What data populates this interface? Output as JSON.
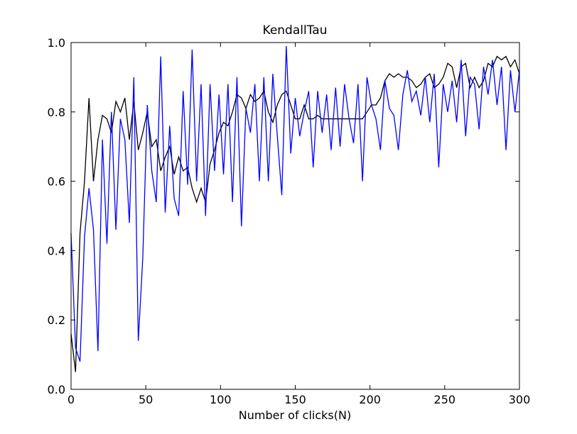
{
  "chart_data": {
    "type": "line",
    "title": "KendallTau",
    "xlabel": "Number of clicks(N)",
    "x": [
      0,
      3,
      6,
      9,
      12,
      15,
      18,
      21,
      24,
      27,
      30,
      33,
      36,
      39,
      42,
      45,
      48,
      51,
      54,
      57,
      60,
      63,
      66,
      69,
      72,
      75,
      78,
      81,
      84,
      87,
      90,
      93,
      96,
      99,
      102,
      105,
      108,
      111,
      114,
      117,
      120,
      123,
      126,
      129,
      132,
      135,
      138,
      141,
      144,
      147,
      150,
      153,
      156,
      159,
      162,
      165,
      168,
      171,
      174,
      177,
      180,
      183,
      186,
      189,
      192,
      195,
      198,
      201,
      204,
      207,
      210,
      213,
      216,
      219,
      222,
      225,
      228,
      231,
      234,
      237,
      240,
      243,
      246,
      249,
      252,
      255,
      258,
      261,
      264,
      267,
      270,
      273,
      276,
      279,
      282,
      285,
      288,
      291,
      294,
      297,
      300
    ],
    "series": [
      {
        "color": "#000000",
        "values": [
          0.16,
          0.05,
          0.45,
          0.6,
          0.84,
          0.6,
          0.72,
          0.79,
          0.78,
          0.74,
          0.83,
          0.8,
          0.84,
          0.72,
          0.83,
          0.69,
          0.74,
          0.8,
          0.7,
          0.72,
          0.63,
          0.67,
          0.7,
          0.62,
          0.67,
          0.63,
          0.64,
          0.58,
          0.54,
          0.58,
          0.54,
          0.65,
          0.69,
          0.74,
          0.77,
          0.76,
          0.8,
          0.85,
          0.84,
          0.81,
          0.85,
          0.83,
          0.84,
          0.86,
          0.8,
          0.77,
          0.82,
          0.85,
          0.86,
          0.82,
          0.78,
          0.78,
          0.82,
          0.78,
          0.78,
          0.79,
          0.78,
          0.78,
          0.78,
          0.78,
          0.78,
          0.78,
          0.78,
          0.78,
          0.78,
          0.78,
          0.8,
          0.82,
          0.82,
          0.84,
          0.89,
          0.91,
          0.9,
          0.91,
          0.9,
          0.9,
          0.89,
          0.87,
          0.88,
          0.9,
          0.91,
          0.87,
          0.88,
          0.9,
          0.94,
          0.93,
          0.87,
          0.93,
          0.94,
          0.87,
          0.9,
          0.87,
          0.89,
          0.94,
          0.93,
          0.96,
          0.95,
          0.96,
          0.93,
          0.95,
          0.91
        ]
      },
      {
        "color": "#0000ff",
        "values": [
          0.45,
          0.12,
          0.08,
          0.44,
          0.58,
          0.46,
          0.11,
          0.72,
          0.42,
          0.8,
          0.46,
          0.78,
          0.72,
          0.48,
          0.9,
          0.14,
          0.38,
          0.82,
          0.63,
          0.54,
          0.96,
          0.51,
          0.76,
          0.55,
          0.5,
          0.86,
          0.59,
          0.98,
          0.6,
          0.88,
          0.5,
          0.88,
          0.63,
          0.85,
          0.62,
          0.88,
          0.54,
          0.9,
          0.47,
          0.81,
          0.74,
          0.88,
          0.6,
          0.9,
          0.6,
          0.91,
          0.73,
          0.56,
          0.99,
          0.68,
          0.84,
          0.73,
          0.8,
          0.86,
          0.64,
          0.86,
          0.74,
          0.85,
          0.69,
          0.87,
          0.7,
          0.88,
          0.78,
          0.71,
          0.88,
          0.6,
          0.9,
          0.82,
          0.78,
          0.69,
          0.89,
          0.81,
          0.79,
          0.69,
          0.85,
          0.92,
          0.83,
          0.86,
          0.79,
          0.9,
          0.77,
          0.91,
          0.64,
          0.88,
          0.8,
          0.89,
          0.77,
          0.95,
          0.73,
          0.9,
          0.88,
          0.75,
          0.93,
          0.85,
          0.95,
          0.82,
          0.93,
          0.69,
          0.92,
          0.8,
          0.92
        ]
      }
    ],
    "xlim": [
      0,
      300
    ],
    "ylim": [
      0.0,
      1.0
    ],
    "xticks": [
      0,
      50,
      100,
      150,
      200,
      250,
      300
    ],
    "yticks": [
      {
        "value": 0,
        "label": "0.0"
      },
      0.2,
      0.4,
      0.6,
      0.8,
      {
        "value": 1,
        "label": "1.0"
      }
    ]
  }
}
